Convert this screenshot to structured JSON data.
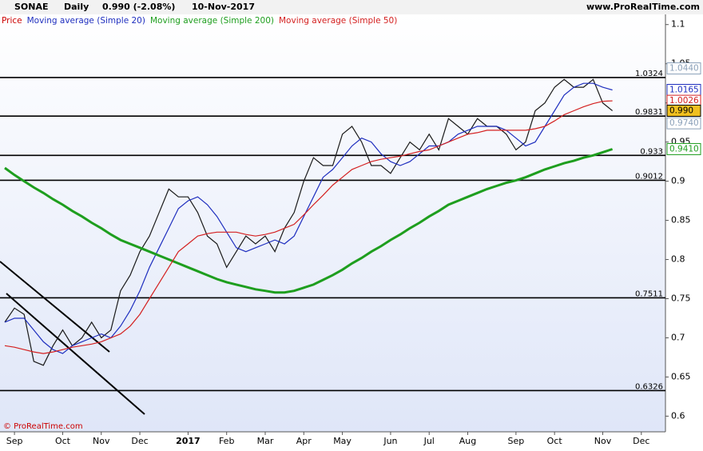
{
  "chart_data": {
    "type": "line",
    "title": "SONAE",
    "period": "Daily",
    "last": "0.990 (-2.08%)",
    "date": "10-Nov-2017",
    "source": "www.ProRealTime.com",
    "footer": "© ProRealTime.com",
    "categories": [
      null,
      "Sep",
      null,
      null,
      null,
      null,
      "Oct",
      null,
      null,
      null,
      "Nov",
      null,
      null,
      null,
      "Dec",
      null,
      null,
      null,
      null,
      "2017",
      null,
      null,
      null,
      "Feb",
      null,
      null,
      null,
      "Mar",
      null,
      null,
      null,
      "Apr",
      null,
      null,
      null,
      "May",
      null,
      null,
      null,
      null,
      "Jun",
      null,
      null,
      null,
      "Jul",
      null,
      null,
      null,
      "Aug",
      null,
      null,
      null,
      null,
      "Sep",
      null,
      null,
      null,
      "Oct",
      null,
      null,
      null,
      null,
      "Nov",
      null,
      null,
      null,
      "Dec",
      null,
      null
    ],
    "series": [
      {
        "name": "Price",
        "color": "#cc0000",
        "line_color": "#1a1a1a",
        "values": [
          0.72,
          0.738,
          0.73,
          0.67,
          0.665,
          0.69,
          0.71,
          0.69,
          0.7,
          0.72,
          0.7,
          0.71,
          0.76,
          0.78,
          0.81,
          0.83,
          0.86,
          0.89,
          0.88,
          0.88,
          0.86,
          0.83,
          0.82,
          0.79,
          0.81,
          0.83,
          0.82,
          0.83,
          0.81,
          0.84,
          0.86,
          0.9,
          0.93,
          0.92,
          0.92,
          0.96,
          0.97,
          0.95,
          0.92,
          0.92,
          0.91,
          0.93,
          0.95,
          0.94,
          0.96,
          0.94,
          0.98,
          0.97,
          0.96,
          0.98,
          0.97,
          0.97,
          0.96,
          0.94,
          0.95,
          0.99,
          1.0,
          1.02,
          1.03,
          1.02,
          1.02,
          1.03,
          1.0,
          0.99,
          null,
          null,
          null,
          null,
          null
        ]
      },
      {
        "name": "Moving average (Simple 20)",
        "color": "#1f2fbf",
        "values": [
          0.72,
          0.725,
          0.725,
          0.71,
          0.695,
          0.685,
          0.68,
          0.69,
          0.695,
          0.7,
          0.705,
          0.7,
          0.715,
          0.735,
          0.76,
          0.79,
          0.815,
          0.84,
          0.865,
          0.875,
          0.88,
          0.87,
          0.855,
          0.835,
          0.815,
          0.81,
          0.815,
          0.82,
          0.825,
          0.82,
          0.83,
          0.855,
          0.88,
          0.905,
          0.915,
          0.93,
          0.945,
          0.955,
          0.95,
          0.935,
          0.925,
          0.92,
          0.925,
          0.935,
          0.945,
          0.945,
          0.95,
          0.96,
          0.965,
          0.97,
          0.97,
          0.97,
          0.965,
          0.955,
          0.945,
          0.95,
          0.97,
          0.99,
          1.01,
          1.02,
          1.025,
          1.025,
          1.02,
          1.0165,
          null,
          null,
          null,
          null,
          null
        ]
      },
      {
        "name": "Moving average (Simple 200)",
        "color": "#1e9e1e",
        "width": 3,
        "values": [
          0.917,
          0.908,
          0.9,
          0.892,
          0.885,
          0.877,
          0.87,
          0.862,
          0.855,
          0.847,
          0.84,
          0.832,
          0.825,
          0.82,
          0.815,
          0.81,
          0.805,
          0.8,
          0.795,
          0.79,
          0.785,
          0.78,
          0.775,
          0.771,
          0.768,
          0.765,
          0.762,
          0.76,
          0.758,
          0.758,
          0.76,
          0.764,
          0.768,
          0.774,
          0.78,
          0.787,
          0.795,
          0.802,
          0.81,
          0.817,
          0.825,
          0.832,
          0.84,
          0.847,
          0.855,
          0.862,
          0.87,
          0.875,
          0.88,
          0.885,
          0.89,
          0.894,
          0.898,
          0.901,
          0.905,
          0.91,
          0.915,
          0.919,
          0.923,
          0.926,
          0.93,
          0.933,
          0.937,
          0.941,
          null,
          null,
          null,
          null,
          null
        ]
      },
      {
        "name": "Moving average (Simple 50)",
        "color": "#d42020",
        "values": [
          0.69,
          0.688,
          0.685,
          0.682,
          0.68,
          0.682,
          0.685,
          0.688,
          0.69,
          0.692,
          0.695,
          0.7,
          0.705,
          0.715,
          0.73,
          0.75,
          0.77,
          0.79,
          0.81,
          0.82,
          0.83,
          0.833,
          0.835,
          0.835,
          0.835,
          0.832,
          0.83,
          0.832,
          0.835,
          0.84,
          0.845,
          0.857,
          0.87,
          0.882,
          0.895,
          0.905,
          0.915,
          0.92,
          0.925,
          0.928,
          0.93,
          0.932,
          0.935,
          0.938,
          0.94,
          0.945,
          0.95,
          0.955,
          0.96,
          0.962,
          0.965,
          0.965,
          0.965,
          0.965,
          0.965,
          0.967,
          0.97,
          0.977,
          0.985,
          0.99,
          0.995,
          0.999,
          1.002,
          1.0026,
          null,
          null,
          null,
          null,
          null
        ]
      }
    ],
    "ylim": [
      0.58,
      1.113
    ],
    "yticks": [
      0.6,
      0.65,
      0.7,
      0.75,
      0.8,
      0.85,
      0.9,
      0.95,
      1,
      1.05,
      1.1
    ],
    "levels": [
      {
        "value": 1.0324,
        "label": "1.0324"
      },
      {
        "value": 0.9831,
        "label": "0.9831"
      },
      {
        "value": 0.933,
        "label": "0.933"
      },
      {
        "value": 0.9012,
        "label": "0.9012"
      },
      {
        "value": 0.7511,
        "label": "0.7511"
      },
      {
        "value": 0.6326,
        "label": "0.6326"
      }
    ],
    "axis_labels": [
      {
        "value": 1.044,
        "label": "1.0440",
        "color": "#8aa0b8",
        "box": "#ffffff"
      },
      {
        "value": 1.0165,
        "label": "1.0165",
        "color": "#1f2fbf",
        "box": "#ffffff"
      },
      {
        "value": 1.0026,
        "label": "1.0026",
        "color": "#d42020",
        "box": "#ffffff"
      },
      {
        "value": 0.99,
        "label": "0.990",
        "color": "#000000",
        "box": "#f0c020"
      },
      {
        "value": 0.974,
        "label": "0.9740",
        "color": "#8aa0b8",
        "box": "#ffffff"
      },
      {
        "value": 0.941,
        "label": "0.9410",
        "color": "#1e9e1e",
        "box": "#ffffff"
      }
    ]
  }
}
